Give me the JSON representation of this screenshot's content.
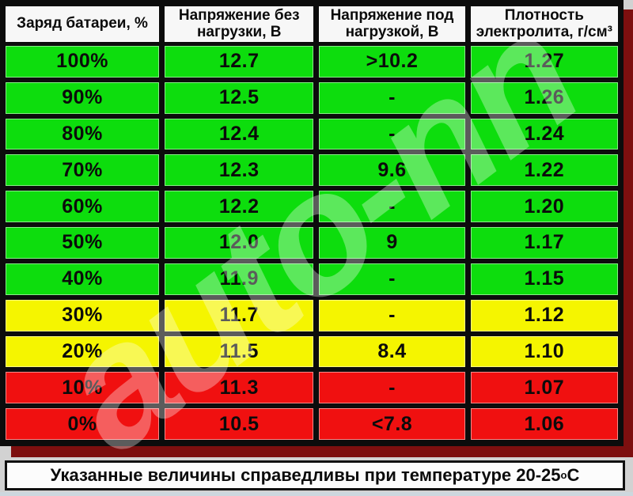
{
  "chart_data": {
    "type": "table",
    "columns": [
      "Заряд батареи, %",
      "Напряжение без нагрузки, В",
      "Напряжение под нагрузкой, В",
      "Плотность электролита, г/см³"
    ],
    "rows": [
      {
        "status": "green",
        "cells": [
          "100%",
          "12.7",
          ">10.2",
          "1.27"
        ]
      },
      {
        "status": "green",
        "cells": [
          "90%",
          "12.5",
          "-",
          "1.26"
        ]
      },
      {
        "status": "green",
        "cells": [
          "80%",
          "12.4",
          "-",
          "1.24"
        ]
      },
      {
        "status": "green",
        "cells": [
          "70%",
          "12.3",
          "9.6",
          "1.22"
        ]
      },
      {
        "status": "green",
        "cells": [
          "60%",
          "12.2",
          "-",
          "1.20"
        ]
      },
      {
        "status": "green",
        "cells": [
          "50%",
          "12.0",
          "9",
          "1.17"
        ]
      },
      {
        "status": "green",
        "cells": [
          "40%",
          "11.9",
          "-",
          "1.15"
        ]
      },
      {
        "status": "yellow",
        "cells": [
          "30%",
          "11.7",
          "-",
          "1.12"
        ]
      },
      {
        "status": "yellow",
        "cells": [
          "20%",
          "11.5",
          "8.4",
          "1.10"
        ]
      },
      {
        "status": "red",
        "cells": [
          "10%",
          "11.3",
          "-",
          "1.07"
        ]
      },
      {
        "status": "red",
        "cells": [
          "0%",
          "10.5",
          "<7.8",
          "1.06"
        ]
      }
    ],
    "note": "Указанные величины справедливы при температуре 20-25°С"
  },
  "footer": {
    "text": "Указанные величины справедливы при температуре 20-25",
    "degree_symbol": "о",
    "unit": "С"
  },
  "watermark": {
    "text": "auto-nn"
  },
  "colors": {
    "green": "#0ddd0d",
    "yellow": "#f5f500",
    "red": "#f01010",
    "header_bg": "#f7f7f7",
    "grid_black": "#0c0c0c",
    "shadow_maroon": "#7d0f0f",
    "page_bg": "#d2d2d2",
    "note_bg": "#fcfcfc",
    "bottom_strip": "#cdd7de"
  }
}
